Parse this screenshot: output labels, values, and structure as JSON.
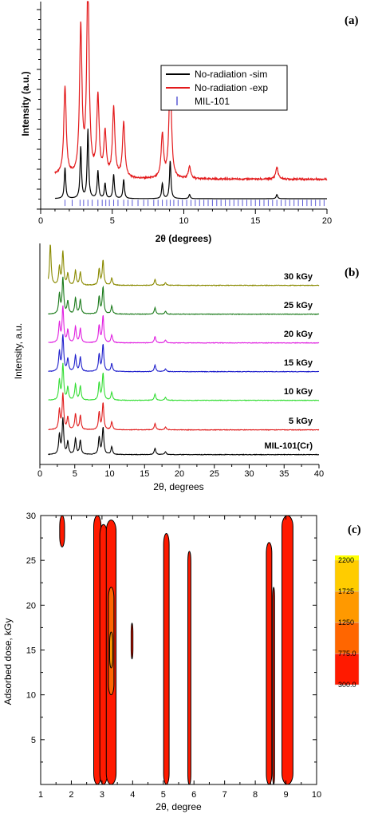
{
  "chart_data": [
    {
      "panel_label": "(a)",
      "type": "line",
      "xlabel": "2θ (degrees)",
      "ylabel": "Intensity (a.u.)",
      "xlim": [
        0,
        20
      ],
      "xticks": [
        0,
        5,
        10,
        15,
        20
      ],
      "legend_position": "top-right",
      "peaks": [
        [
          1.7,
          0.45
        ],
        [
          2.8,
          0.75
        ],
        [
          3.3,
          1.0
        ],
        [
          4.0,
          0.4
        ],
        [
          4.5,
          0.22
        ],
        [
          5.1,
          0.35
        ],
        [
          5.8,
          0.28
        ],
        [
          8.5,
          0.22
        ],
        [
          9.05,
          0.55
        ],
        [
          10.4,
          0.06
        ],
        [
          16.5,
          0.06
        ]
      ],
      "series": [
        {
          "name": "No-radiation -sim",
          "color": "#000000",
          "baseline": 0.05,
          "scale": 0.35
        },
        {
          "name": "No-radiation -exp",
          "color": "#e31a1c",
          "baseline": 0.14,
          "scale": 1.0
        },
        {
          "name": "MIL-101",
          "color": "#5b5bd6",
          "marker": "|",
          "positions": [
            1.7,
            2.2,
            2.75,
            3.0,
            3.3,
            3.6,
            4.0,
            4.3,
            4.55,
            4.8,
            5.1,
            5.4,
            5.8,
            6.1,
            6.4,
            6.8,
            7.2,
            7.5,
            7.9,
            8.2,
            8.5,
            8.8,
            9.05,
            9.3,
            9.6,
            9.9,
            10.2,
            10.5,
            10.8,
            11.1,
            11.4,
            11.7,
            12.0,
            12.3,
            12.6,
            12.9,
            13.2,
            13.5,
            13.8,
            14.1,
            14.4,
            14.7,
            15.0,
            15.3,
            15.6,
            15.9,
            16.2,
            16.5,
            16.8,
            17.1,
            17.4,
            17.7,
            18.0,
            18.3,
            18.6,
            18.9,
            19.2,
            19.5,
            19.8
          ]
        }
      ]
    },
    {
      "panel_label": "(b)",
      "type": "line",
      "xlabel": "2θ, degrees",
      "ylabel": "Intensity, a.u.",
      "xlim": [
        0,
        40
      ],
      "xticks": [
        0,
        5,
        10,
        15,
        20,
        25,
        30,
        35,
        40
      ],
      "peaks": [
        [
          2.8,
          0.55
        ],
        [
          3.3,
          1.0
        ],
        [
          4.0,
          0.35
        ],
        [
          5.1,
          0.45
        ],
        [
          5.8,
          0.4
        ],
        [
          8.5,
          0.48
        ],
        [
          9.05,
          0.75
        ],
        [
          10.3,
          0.22
        ],
        [
          16.5,
          0.18
        ],
        [
          18.0,
          0.08
        ]
      ],
      "series": [
        {
          "name": "30 kGy",
          "color": "#8a8a00",
          "offset": 6
        },
        {
          "name": "25 kGy",
          "color": "#1a7a1a",
          "offset": 5
        },
        {
          "name": "20 kGy",
          "color": "#e020e0",
          "offset": 4
        },
        {
          "name": "15 kGy",
          "color": "#1f1fcc",
          "offset": 3
        },
        {
          "name": "10 kGy",
          "color": "#33dd33",
          "offset": 2
        },
        {
          "name": "5 kGy",
          "color": "#e01a1a",
          "offset": 1
        },
        {
          "name": "MIL-101(Cr)",
          "color": "#000000",
          "offset": 0
        }
      ]
    },
    {
      "panel_label": "(c)",
      "type": "heatmap",
      "xlabel": "2θ, degree",
      "ylabel": "Adsorbed dose, kGy",
      "xlim": [
        1,
        10
      ],
      "ylim": [
        0,
        30
      ],
      "xticks": [
        1,
        2,
        3,
        4,
        5,
        6,
        7,
        8,
        9,
        10
      ],
      "yticks": [
        5,
        10,
        15,
        20,
        25,
        30
      ],
      "colorbar": {
        "levels": [
          "300.0",
          "775.0",
          "1250",
          "1725",
          "2200"
        ],
        "colors": [
          "#ff1a00",
          "#ff6600",
          "#ff9900",
          "#ffcc00",
          "#ffff00"
        ]
      },
      "contours": [
        {
          "x": 1.7,
          "y0": 26.5,
          "y1": 30,
          "w": 0.08,
          "level": 0
        },
        {
          "x": 2.85,
          "y0": 0,
          "y1": 30,
          "w": 0.12,
          "level": 0
        },
        {
          "x": 3.05,
          "y0": 0,
          "y1": 29,
          "w": 0.12,
          "level": 0
        },
        {
          "x": 3.3,
          "y0": 0,
          "y1": 29.5,
          "w": 0.16,
          "level": 0
        },
        {
          "x": 3.3,
          "y0": 10,
          "y1": 22,
          "w": 0.09,
          "level": 1
        },
        {
          "x": 3.3,
          "y0": 13,
          "y1": 17,
          "w": 0.05,
          "level": 2
        },
        {
          "x": 3.98,
          "y0": 14,
          "y1": 18,
          "w": 0.03,
          "level": 0
        },
        {
          "x": 5.1,
          "y0": 0,
          "y1": 28,
          "w": 0.09,
          "level": 0
        },
        {
          "x": 5.85,
          "y0": 0,
          "y1": 26,
          "w": 0.05,
          "level": 0
        },
        {
          "x": 8.45,
          "y0": 0,
          "y1": 27,
          "w": 0.09,
          "level": 0
        },
        {
          "x": 8.6,
          "y0": 0,
          "y1": 22,
          "w": 0.03,
          "level": 0
        },
        {
          "x": 9.05,
          "y0": 0,
          "y1": 30,
          "w": 0.18,
          "level": 0
        }
      ]
    }
  ]
}
